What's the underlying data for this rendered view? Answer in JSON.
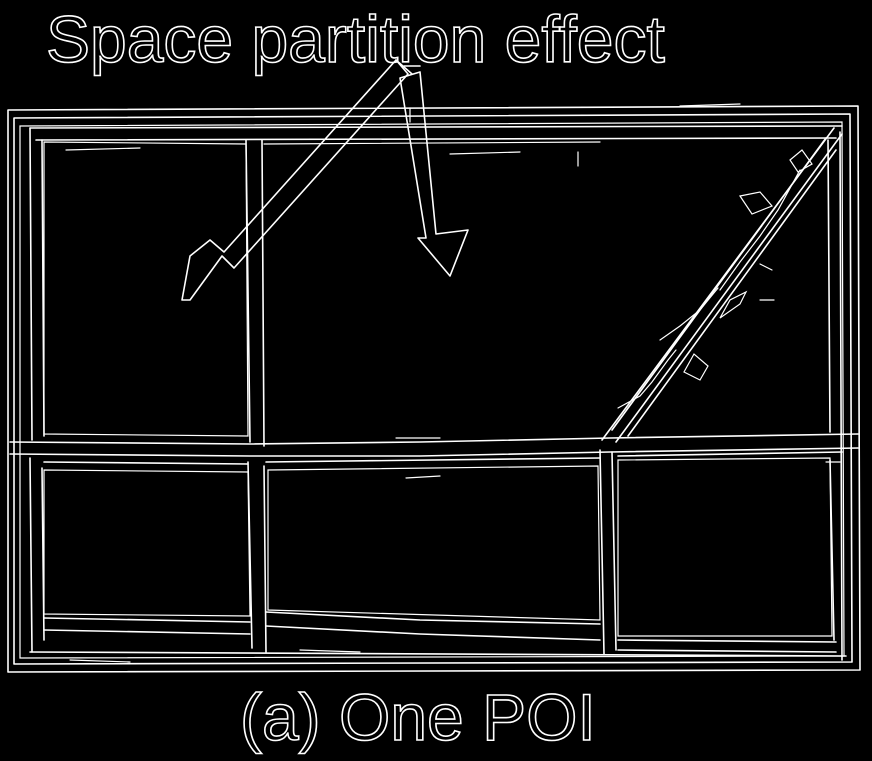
{
  "annotation": {
    "label": "Space partition effect"
  },
  "caption": {
    "text": "(a) One POI"
  },
  "colors": {
    "background": "#000000",
    "edges": "#ffffff"
  }
}
